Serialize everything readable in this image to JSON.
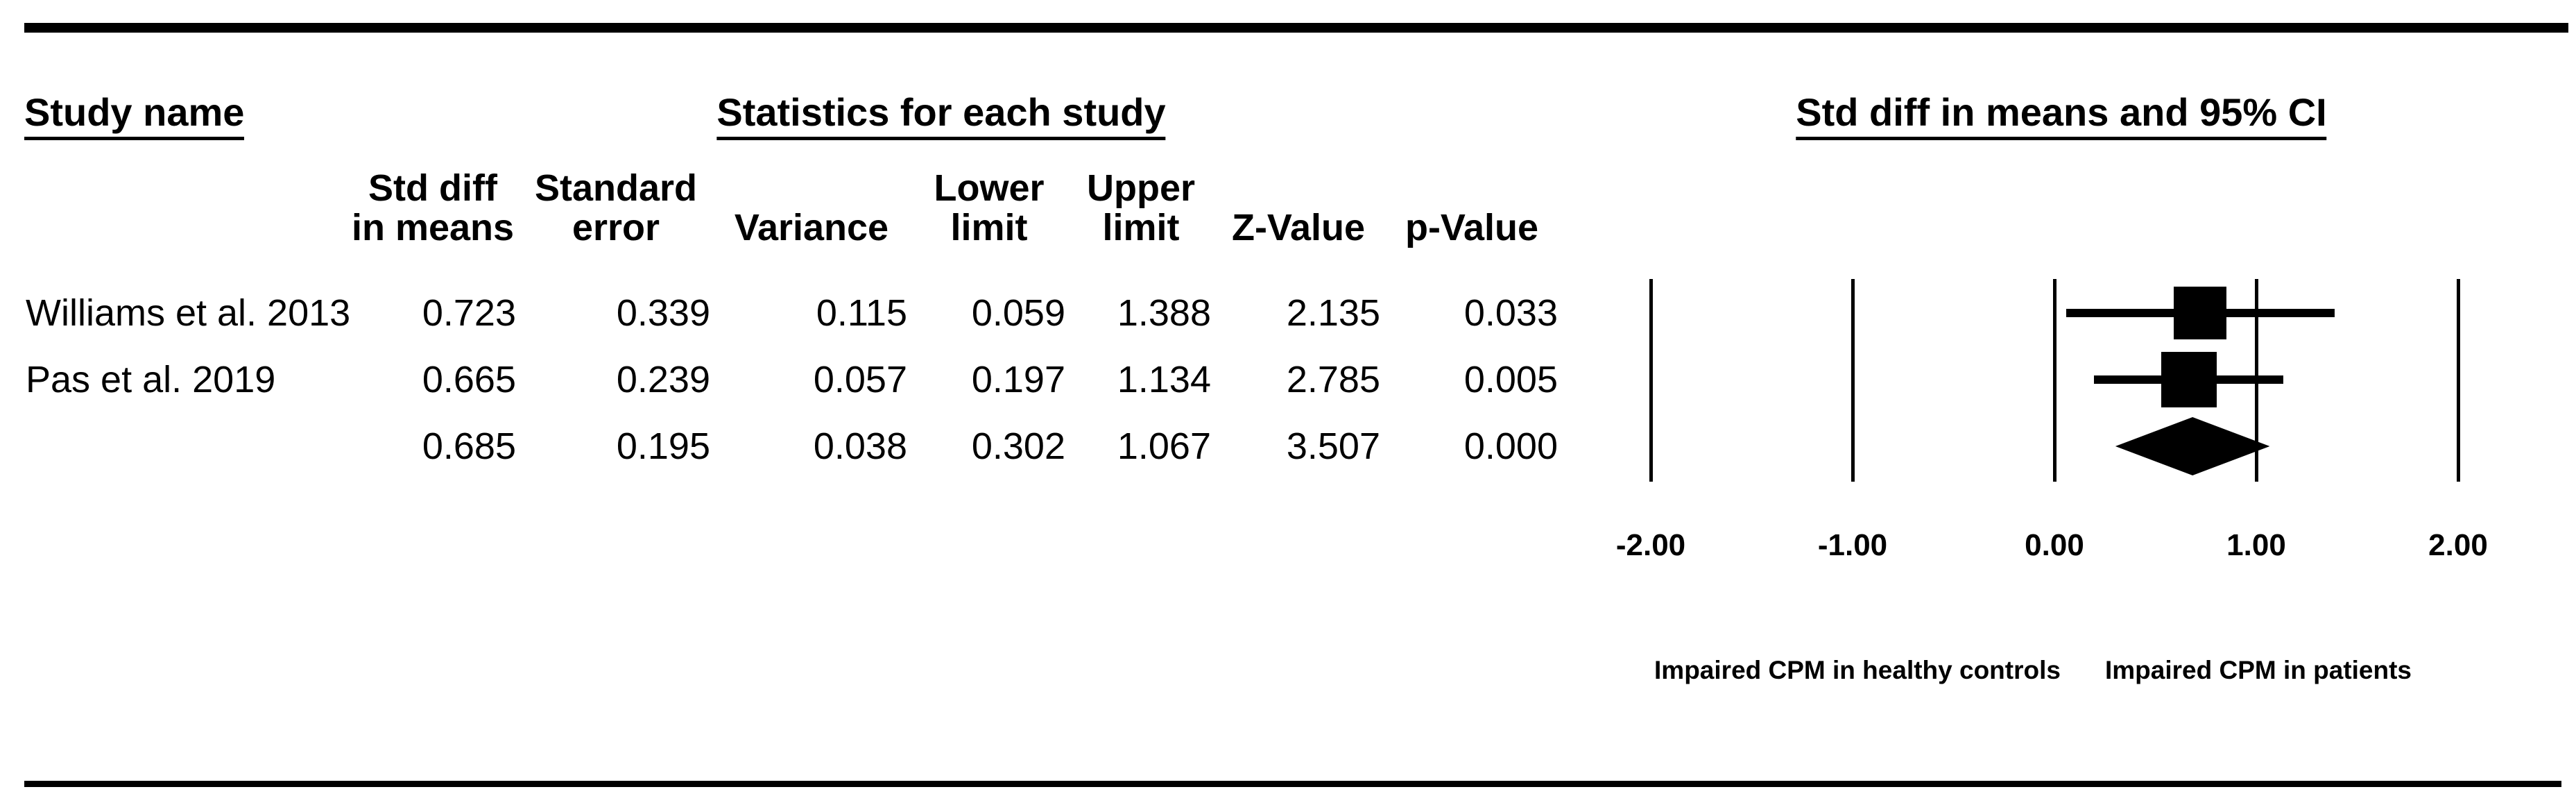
{
  "header": {
    "study_col_title": "Study name",
    "stats_title": "Statistics for each study",
    "plot_title": "Std diff in means and 95% CI"
  },
  "table": {
    "columns": [
      "Std diff\nin means",
      "Standard\nerror",
      "Variance",
      "Lower\nlimit",
      "Upper\nlimit",
      "Z-Value",
      "p-Value"
    ],
    "rows": [
      {
        "study": "Williams et al. 2013",
        "values": [
          "0.723",
          "0.339",
          "0.115",
          "0.059",
          "1.388",
          "2.135",
          "0.033"
        ]
      },
      {
        "study": "Pas et al. 2019",
        "values": [
          "0.665",
          "0.239",
          "0.057",
          "0.197",
          "1.134",
          "2.785",
          "0.005"
        ]
      },
      {
        "study": "",
        "values": [
          "0.685",
          "0.195",
          "0.038",
          "0.302",
          "1.067",
          "3.507",
          "0.000"
        ]
      }
    ]
  },
  "chart_data": {
    "type": "forest",
    "title": "Std diff in means and 95% CI",
    "xlim": [
      -2,
      2
    ],
    "axis_ticks": [
      {
        "label": "-2.00",
        "value": -2
      },
      {
        "label": "-1.00",
        "value": -1
      },
      {
        "label": "0.00",
        "value": 0
      },
      {
        "label": "1.00",
        "value": 1
      },
      {
        "label": "2.00",
        "value": 2
      }
    ],
    "studies": [
      {
        "name": "Williams et al. 2013",
        "estimate": 0.723,
        "lower": 0.059,
        "upper": 1.388,
        "marker": "square",
        "marker_size_px": 76
      },
      {
        "name": "Pas et al. 2019",
        "estimate": 0.665,
        "lower": 0.197,
        "upper": 1.134,
        "marker": "square",
        "marker_size_px": 80
      },
      {
        "name": "",
        "estimate": 0.685,
        "lower": 0.302,
        "upper": 1.067,
        "marker": "diamond",
        "marker_height_px": 84
      }
    ],
    "footer_labels": {
      "left": "Impaired CPM in healthy controls",
      "right": "Impaired CPM in patients"
    },
    "colors": {
      "marker": "#000000",
      "line": "#000000",
      "text": "#000000"
    }
  }
}
